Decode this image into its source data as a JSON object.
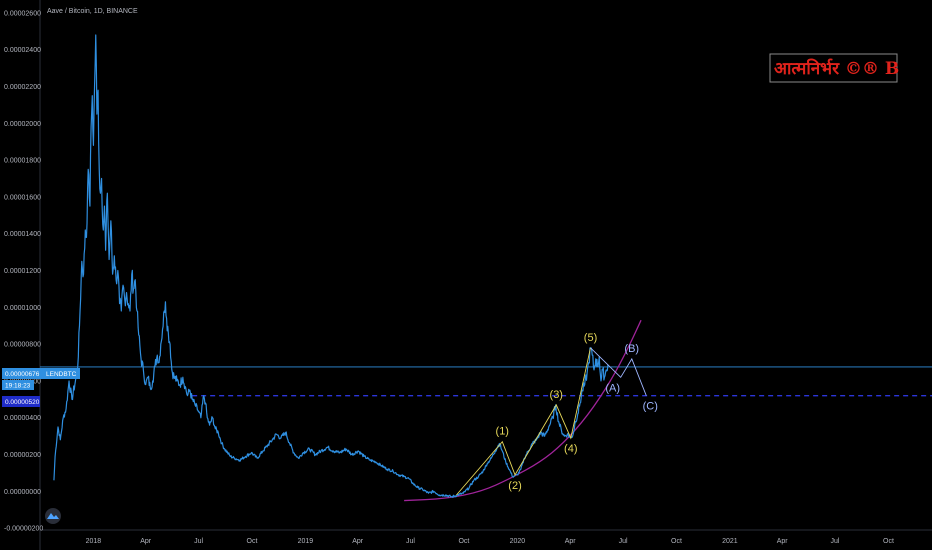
{
  "header": {
    "title": "Aave / Bitcoin, 1D, BINANCE"
  },
  "watermark": {
    "text": "आत्मनिर्भर ©® B",
    "color": "#e0231c"
  },
  "price_badges": {
    "current_price": "0.00000676",
    "symbol": "LENDBTC",
    "countdown": "19:18:23",
    "level_price": "0.00000520"
  },
  "colors": {
    "background": "#000000",
    "price_line": "#2f8fe0",
    "current_badge": "#2f8fe0",
    "level_badge": "#1f2cc9",
    "level_line": "#2c35d9",
    "wave_impulse": "#e6d85a",
    "wave_corrective": "#9fb6ff",
    "support_curve": "#a0249a"
  },
  "chart_data": {
    "type": "line",
    "title": "Aave / Bitcoin, 1D, BINANCE",
    "xlabel": "",
    "ylabel": "",
    "y_ticks": [
      "0.00002600",
      "0.00002400",
      "0.00002200",
      "0.00002000",
      "0.00001800",
      "0.00001600",
      "0.00001400",
      "0.00001200",
      "0.00001000",
      "0.00000800",
      "0.00000600",
      "0.00000400",
      "0.00000200",
      "0.00000000",
      "-0.00000200"
    ],
    "x_ticks": [
      "2018",
      "Apr",
      "Jul",
      "Oct",
      "2019",
      "Apr",
      "Jul",
      "Oct",
      "2020",
      "Apr",
      "Jul",
      "Oct",
      "2021",
      "Apr",
      "Jul",
      "Oct"
    ],
    "ylim": [
      -2.1e-06,
      2.67e-05
    ],
    "xlim": [
      "2017-10-01",
      "2021-12-15"
    ],
    "grid": false,
    "series": [
      {
        "values": [
          [
            "2017-10-25",
            6e-07
          ],
          [
            "2017-10-27",
            1.9e-06
          ],
          [
            "2017-11-01",
            3.5e-06
          ],
          [
            "2017-11-05",
            2.8e-06
          ],
          [
            "2017-11-10",
            4e-06
          ],
          [
            "2017-11-15",
            4.5e-06
          ],
          [
            "2017-11-20",
            6e-06
          ],
          [
            "2017-11-25",
            5e-06
          ],
          [
            "2017-12-01",
            6e-06
          ],
          [
            "2017-12-05",
            6.8e-06
          ],
          [
            "2017-12-08",
            9e-06
          ],
          [
            "2017-12-12",
            1.25e-05
          ],
          [
            "2017-12-15",
            1.18e-05
          ],
          [
            "2017-12-18",
            1.42e-05
          ],
          [
            "2017-12-20",
            1.38e-05
          ],
          [
            "2017-12-22",
            1.65e-05
          ],
          [
            "2017-12-24",
            1.72e-05
          ],
          [
            "2017-12-26",
            1.55e-05
          ],
          [
            "2017-12-28",
            1.98e-05
          ],
          [
            "2017-12-30",
            2.15e-05
          ],
          [
            "2018-01-01",
            1.88e-05
          ],
          [
            "2018-01-03",
            2.21e-05
          ],
          [
            "2018-01-05",
            2.48e-05
          ],
          [
            "2018-01-07",
            2.05e-05
          ],
          [
            "2018-01-09",
            2.18e-05
          ],
          [
            "2018-01-11",
            1.75e-05
          ],
          [
            "2018-01-13",
            1.62e-05
          ],
          [
            "2018-01-15",
            1.7e-05
          ],
          [
            "2018-01-18",
            1.42e-05
          ],
          [
            "2018-01-20",
            1.55e-05
          ],
          [
            "2018-01-22",
            1.31e-05
          ],
          [
            "2018-01-25",
            1.62e-05
          ],
          [
            "2018-01-28",
            1.26e-05
          ],
          [
            "2018-01-31",
            1.47e-05
          ],
          [
            "2018-02-03",
            1.18e-05
          ],
          [
            "2018-02-06",
            1.28e-05
          ],
          [
            "2018-02-09",
            1.15e-05
          ],
          [
            "2018-02-12",
            1.2e-05
          ],
          [
            "2018-02-15",
            1.02e-05
          ],
          [
            "2018-02-18",
            9.8e-06
          ],
          [
            "2018-02-21",
            1.12e-05
          ],
          [
            "2018-02-24",
            1.04e-05
          ],
          [
            "2018-02-27",
            1.08e-05
          ],
          [
            "2018-03-02",
            1.02e-05
          ],
          [
            "2018-03-05",
            9.8e-06
          ],
          [
            "2018-03-08",
            1.18e-05
          ],
          [
            "2018-03-11",
            1.1e-05
          ],
          [
            "2018-03-14",
            1.15e-05
          ],
          [
            "2018-03-17",
            9.8e-06
          ],
          [
            "2018-03-20",
            8.5e-06
          ],
          [
            "2018-03-24",
            7.2e-06
          ],
          [
            "2018-03-28",
            6.6e-06
          ],
          [
            "2018-04-01",
            5.8e-06
          ],
          [
            "2018-04-05",
            6.2e-06
          ],
          [
            "2018-04-09",
            5.6e-06
          ],
          [
            "2018-04-13",
            6e-06
          ],
          [
            "2018-04-17",
            6.8e-06
          ],
          [
            "2018-04-21",
            7.4e-06
          ],
          [
            "2018-04-24",
            7e-06
          ],
          [
            "2018-04-27",
            8e-06
          ],
          [
            "2018-04-30",
            8.8e-06
          ],
          [
            "2018-05-03",
            9.8e-06
          ],
          [
            "2018-05-05",
            1.03e-05
          ],
          [
            "2018-05-07",
            9.4e-06
          ],
          [
            "2018-05-10",
            8.6e-06
          ],
          [
            "2018-05-13",
            8e-06
          ],
          [
            "2018-05-16",
            6.6e-06
          ],
          [
            "2018-05-20",
            6.2e-06
          ],
          [
            "2018-05-25",
            6e-06
          ],
          [
            "2018-05-30",
            5.8e-06
          ],
          [
            "2018-06-04",
            6.2e-06
          ],
          [
            "2018-06-08",
            5.7e-06
          ],
          [
            "2018-06-12",
            5.2e-06
          ],
          [
            "2018-06-16",
            5.5e-06
          ],
          [
            "2018-06-20",
            5e-06
          ],
          [
            "2018-06-25",
            4.7e-06
          ],
          [
            "2018-06-30",
            4.4e-06
          ],
          [
            "2018-07-05",
            4e-06
          ],
          [
            "2018-07-10",
            5.2e-06
          ],
          [
            "2018-07-13",
            4.8e-06
          ],
          [
            "2018-07-16",
            4e-06
          ],
          [
            "2018-07-20",
            3.6e-06
          ],
          [
            "2018-07-25",
            4e-06
          ],
          [
            "2018-07-30",
            3.4e-06
          ],
          [
            "2018-08-04",
            3.2e-06
          ],
          [
            "2018-08-10",
            2.6e-06
          ],
          [
            "2018-08-15",
            2.3e-06
          ],
          [
            "2018-08-20",
            2.1e-06
          ],
          [
            "2018-08-25",
            1.9e-06
          ],
          [
            "2018-09-01",
            1.8e-06
          ],
          [
            "2018-09-10",
            1.7e-06
          ],
          [
            "2018-09-20",
            1.9e-06
          ],
          [
            "2018-09-30",
            2.1e-06
          ],
          [
            "2018-10-10",
            1.8e-06
          ],
          [
            "2018-10-20",
            2.2e-06
          ],
          [
            "2018-10-28",
            2.5e-06
          ],
          [
            "2018-11-05",
            2.8e-06
          ],
          [
            "2018-11-12",
            3.1e-06
          ],
          [
            "2018-11-20",
            2.9e-06
          ],
          [
            "2018-11-28",
            3.2e-06
          ],
          [
            "2018-12-05",
            2.6e-06
          ],
          [
            "2018-12-12",
            2.1e-06
          ],
          [
            "2018-12-20",
            1.8e-06
          ],
          [
            "2018-12-28",
            2.1e-06
          ],
          [
            "2019-01-08",
            2.3e-06
          ],
          [
            "2019-01-18",
            2e-06
          ],
          [
            "2019-01-28",
            2.2e-06
          ],
          [
            "2019-02-08",
            2.4e-06
          ],
          [
            "2019-02-18",
            2.2e-06
          ],
          [
            "2019-03-01",
            2.1e-06
          ],
          [
            "2019-03-12",
            2.3e-06
          ],
          [
            "2019-03-22",
            2e-06
          ],
          [
            "2019-04-02",
            2.2e-06
          ],
          [
            "2019-04-12",
            1.9e-06
          ],
          [
            "2019-04-22",
            1.7e-06
          ],
          [
            "2019-05-02",
            1.6e-06
          ],
          [
            "2019-05-12",
            1.4e-06
          ],
          [
            "2019-05-22",
            1.2e-06
          ],
          [
            "2019-06-01",
            1.1e-06
          ],
          [
            "2019-06-10",
            9e-07
          ],
          [
            "2019-06-20",
            8e-07
          ],
          [
            "2019-06-28",
            7e-07
          ],
          [
            "2019-07-06",
            4e-07
          ],
          [
            "2019-07-14",
            2e-07
          ],
          [
            "2019-07-22",
            1e-07
          ],
          [
            "2019-08-01",
            -1e-07
          ],
          [
            "2019-08-10",
            0.0
          ],
          [
            "2019-08-20",
            -2e-07
          ],
          [
            "2019-08-30",
            -2e-07
          ],
          [
            "2019-09-10",
            -3e-07
          ],
          [
            "2019-09-20",
            -2e-07
          ],
          [
            "2019-09-30",
            -1e-07
          ],
          [
            "2019-10-10",
            2e-07
          ],
          [
            "2019-10-18",
            6e-07
          ],
          [
            "2019-10-26",
            8e-07
          ],
          [
            "2019-11-03",
            1.1e-06
          ],
          [
            "2019-11-10",
            1.5e-06
          ],
          [
            "2019-11-17",
            1.8e-06
          ],
          [
            "2019-11-24",
            2.2e-06
          ],
          [
            "2019-12-01",
            2.6e-06
          ],
          [
            "2019-12-06",
            2.2e-06
          ],
          [
            "2019-12-12",
            1.6e-06
          ],
          [
            "2019-12-18",
            1.2e-06
          ],
          [
            "2019-12-24",
            8e-07
          ],
          [
            "2020-01-01",
            9e-07
          ],
          [
            "2020-01-07",
            1.2e-06
          ],
          [
            "2020-01-13",
            1.8e-06
          ],
          [
            "2020-01-20",
            2.2e-06
          ],
          [
            "2020-01-27",
            2.6e-06
          ],
          [
            "2020-02-03",
            2.8e-06
          ],
          [
            "2020-02-10",
            3.2e-06
          ],
          [
            "2020-02-17",
            3e-06
          ],
          [
            "2020-02-24",
            3.5e-06
          ],
          [
            "2020-03-02",
            4e-06
          ],
          [
            "2020-03-07",
            4.7e-06
          ],
          [
            "2020-03-12",
            3.8e-06
          ],
          [
            "2020-03-17",
            3.3e-06
          ],
          [
            "2020-03-22",
            3e-06
          ],
          [
            "2020-03-27",
            3.1e-06
          ],
          [
            "2020-04-02",
            2.9e-06
          ],
          [
            "2020-04-06",
            3.1e-06
          ],
          [
            "2020-04-10",
            3.8e-06
          ],
          [
            "2020-04-14",
            4.2e-06
          ],
          [
            "2020-04-18",
            4.8e-06
          ],
          [
            "2020-04-22",
            5.5e-06
          ],
          [
            "2020-04-26",
            5.8e-06
          ],
          [
            "2020-04-30",
            6.4e-06
          ],
          [
            "2020-05-03",
            7e-06
          ],
          [
            "2020-05-06",
            7.8e-06
          ],
          [
            "2020-05-09",
            7.4e-06
          ],
          [
            "2020-05-12",
            6.6e-06
          ],
          [
            "2020-05-15",
            7.2e-06
          ],
          [
            "2020-05-18",
            6.8e-06
          ],
          [
            "2020-05-21",
            7.3e-06
          ],
          [
            "2020-05-24",
            6e-06
          ],
          [
            "2020-05-27",
            6.6e-06
          ],
          [
            "2020-05-30",
            6.2e-06
          ],
          [
            "2020-06-02",
            6.6e-06
          ],
          [
            "2020-06-05",
            6.9e-06
          ]
        ]
      }
    ],
    "horizontal_lines": [
      {
        "value": 6.76e-06,
        "style": "solid"
      },
      {
        "value": 5.2e-06,
        "style": "dashed"
      }
    ],
    "annotations": [
      {
        "type": "elliott_impulse",
        "color": "#e6d85a",
        "points": [
          {
            "label": "",
            "x": "2019-09-18",
            "y": -2e-07
          },
          {
            "label": "(1)",
            "x": "2019-12-06",
            "y": 2.7e-06
          },
          {
            "label": "(2)",
            "x": "2019-12-28",
            "y": 9e-07
          },
          {
            "label": "(3)",
            "x": "2020-03-08",
            "y": 4.7e-06
          },
          {
            "label": "(4)",
            "x": "2020-04-02",
            "y": 2.9e-06
          },
          {
            "label": "(5)",
            "x": "2020-05-06",
            "y": 7.8e-06
          }
        ]
      },
      {
        "type": "elliott_corrective",
        "color": "#9fb6ff",
        "points": [
          {
            "label": "",
            "x": "2020-05-06",
            "y": 7.8e-06
          },
          {
            "label": "(A)",
            "x": "2020-06-27",
            "y": 6.2e-06
          },
          {
            "label": "(B)",
            "x": "2020-07-16",
            "y": 7.2e-06
          },
          {
            "label": "(C)",
            "x": "2020-08-10",
            "y": 5.2e-06
          }
        ]
      },
      {
        "type": "support_curve",
        "color": "#a0249a",
        "points": [
          [
            "2019-06-20",
            -5e-07
          ],
          [
            "2019-09-01",
            -4e-07
          ],
          [
            "2019-11-01",
            0.0
          ],
          [
            "2019-12-20",
            7e-07
          ],
          [
            "2020-02-10",
            1.6e-06
          ],
          [
            "2020-03-20",
            2.6e-06
          ],
          [
            "2020-05-01",
            4.1e-06
          ],
          [
            "2020-06-10",
            6e-06
          ],
          [
            "2020-07-10",
            7.8e-06
          ],
          [
            "2020-08-01",
            9.3e-06
          ]
        ]
      }
    ]
  }
}
